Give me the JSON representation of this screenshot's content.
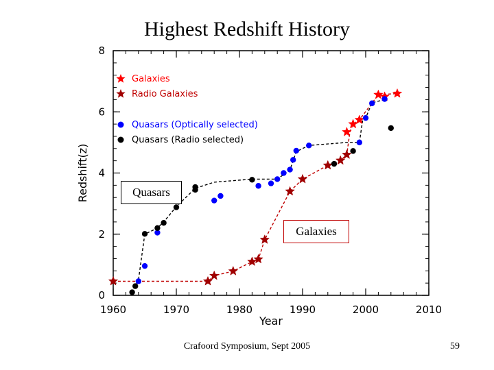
{
  "slide": {
    "title": "Highest Redshift History",
    "footer": "Crafoord Symposium, Sept 2005",
    "page_number": "59",
    "callouts": {
      "quasars": "Quasars",
      "galaxies": "Galaxies"
    }
  },
  "chart_data": {
    "type": "scatter",
    "title": "",
    "xlabel": "Year",
    "ylabel": "Redshift(z)",
    "xlim": [
      1960,
      2010
    ],
    "ylim": [
      0,
      8
    ],
    "xticks": [
      1960,
      1970,
      1980,
      1990,
      2000,
      2010
    ],
    "yticks": [
      0,
      2,
      4,
      6,
      8
    ],
    "legend_position": "top-left",
    "series": [
      {
        "name": "Galaxies",
        "marker": "star",
        "color": "#ff0000",
        "points": [
          [
            1997,
            5.34
          ],
          [
            1998,
            5.6
          ],
          [
            1999,
            5.74
          ],
          [
            2002,
            6.56
          ],
          [
            2003,
            6.5
          ],
          [
            2005,
            6.6
          ]
        ]
      },
      {
        "name": "Radio Galaxies",
        "marker": "star",
        "color": "#a00000",
        "points": [
          [
            1960,
            0.46
          ],
          [
            1975,
            0.46
          ],
          [
            1976,
            0.64
          ],
          [
            1979,
            0.79
          ],
          [
            1982,
            1.1
          ],
          [
            1983,
            1.18
          ],
          [
            1984,
            1.82
          ],
          [
            1988,
            3.4
          ],
          [
            1990,
            3.8
          ],
          [
            1994,
            4.25
          ],
          [
            1996,
            4.41
          ],
          [
            1997,
            4.6
          ]
        ]
      },
      {
        "name": "Quasars (Optically selected)",
        "marker": "circle",
        "color": "#0000ff",
        "points": [
          [
            1964,
            0.46
          ],
          [
            1965,
            0.96
          ],
          [
            1967,
            2.05
          ],
          [
            1976,
            3.1
          ],
          [
            1977,
            3.25
          ],
          [
            1983,
            3.58
          ],
          [
            1985,
            3.66
          ],
          [
            1986,
            3.8
          ],
          [
            1987,
            4.0
          ],
          [
            1988,
            4.11
          ],
          [
            1988.5,
            4.43
          ],
          [
            1989,
            4.73
          ],
          [
            1991,
            4.9
          ],
          [
            1999,
            5.0
          ],
          [
            2000,
            5.8
          ],
          [
            2001,
            6.28
          ],
          [
            2003,
            6.42
          ]
        ]
      },
      {
        "name": "Quasars (Radio selected)",
        "marker": "circle",
        "color": "#000000",
        "points": [
          [
            1963,
            0.1
          ],
          [
            1963.5,
            0.3
          ],
          [
            1965,
            2.01
          ],
          [
            1967,
            2.2
          ],
          [
            1968,
            2.37
          ],
          [
            1970,
            2.88
          ],
          [
            1973,
            3.45
          ],
          [
            1973,
            3.54
          ],
          [
            1982,
            3.78
          ],
          [
            1995,
            4.3
          ],
          [
            1998,
            4.72
          ],
          [
            2004,
            5.47
          ]
        ]
      }
    ],
    "trend_lines": [
      {
        "name": "quasar-record",
        "color": "#000000",
        "points": [
          [
            1963,
            0.1
          ],
          [
            1964,
            0.5
          ],
          [
            1965,
            2.0
          ],
          [
            1967,
            2.2
          ],
          [
            1968,
            2.4
          ],
          [
            1970,
            2.9
          ],
          [
            1973,
            3.5
          ],
          [
            1976,
            3.7
          ],
          [
            1982,
            3.8
          ],
          [
            1986,
            3.8
          ],
          [
            1988,
            4.1
          ],
          [
            1989,
            4.7
          ],
          [
            1991,
            4.9
          ],
          [
            1997,
            5.0
          ],
          [
            1999,
            5.0
          ],
          [
            1999.5,
            5.7
          ],
          [
            2000,
            5.8
          ],
          [
            2001,
            6.3
          ],
          [
            2003,
            6.4
          ]
        ]
      },
      {
        "name": "galaxy-record",
        "color": "#c00000",
        "points": [
          [
            1960,
            0.46
          ],
          [
            1975,
            0.46
          ],
          [
            1976,
            0.64
          ],
          [
            1979,
            0.79
          ],
          [
            1982,
            1.1
          ],
          [
            1983,
            1.18
          ],
          [
            1984,
            1.82
          ],
          [
            1988,
            3.4
          ],
          [
            1990,
            3.8
          ],
          [
            1994,
            4.25
          ],
          [
            1996,
            4.41
          ],
          [
            1997,
            4.6
          ],
          [
            1997.5,
            5.34
          ],
          [
            1998,
            5.6
          ],
          [
            1999,
            5.74
          ],
          [
            2002,
            6.56
          ],
          [
            2005,
            6.6
          ]
        ]
      }
    ]
  }
}
